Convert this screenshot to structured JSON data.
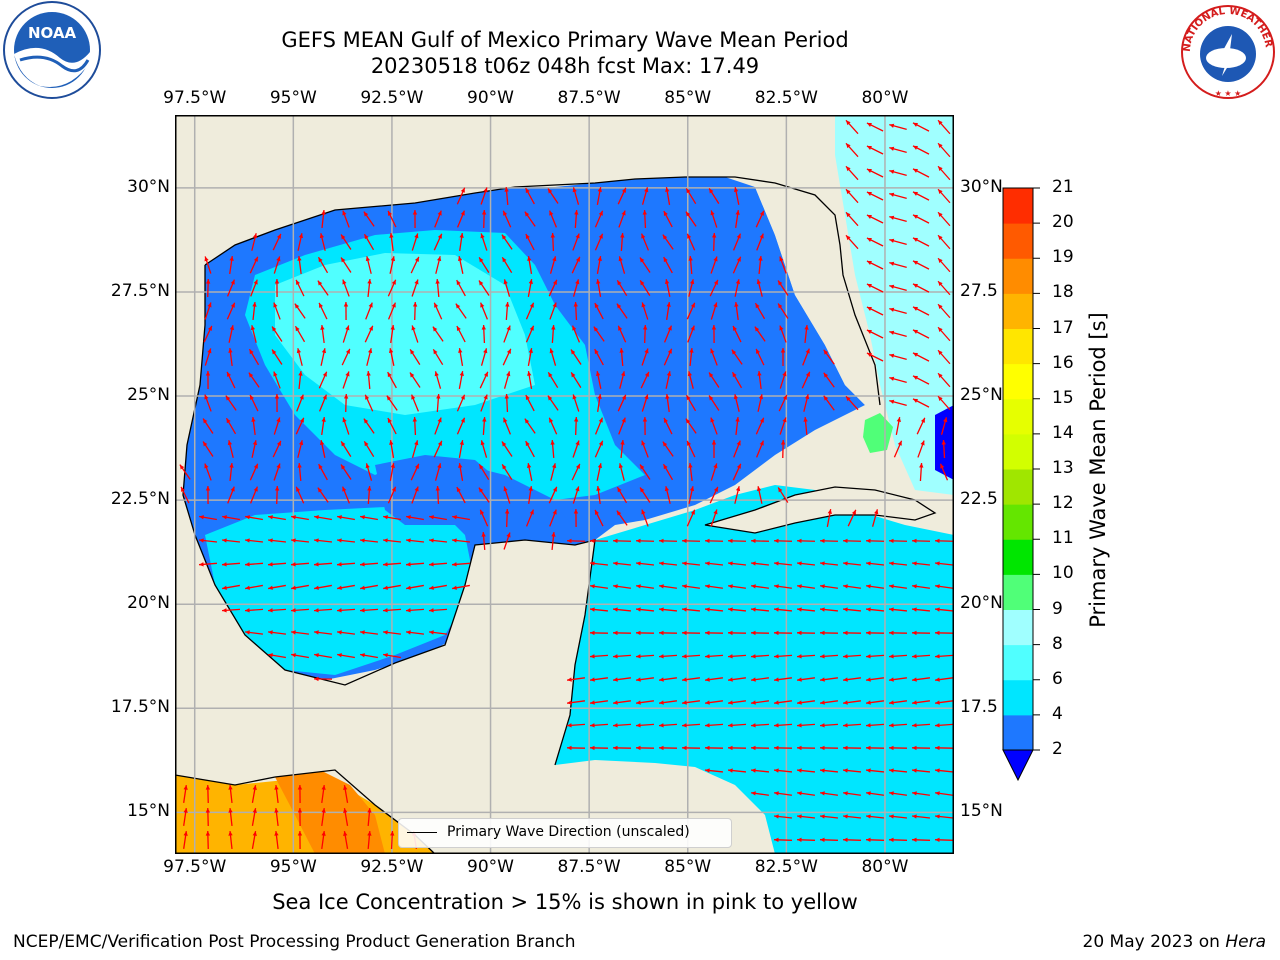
{
  "title": {
    "line1": "GEFS MEAN Gulf of Mexico Primary Wave Mean Period",
    "line2": "20230518 t06z 048h fcst   Max: 17.49"
  },
  "axes": {
    "lon_labels": [
      "97.5°W",
      "95°W",
      "92.5°W",
      "90°W",
      "87.5°W",
      "85°W",
      "82.5°W",
      "80°W"
    ],
    "lat_labels": [
      "30°N",
      "27.5°N",
      "25°N",
      "22.5°N",
      "20°N",
      "17.5°N",
      "15°N"
    ],
    "lat_labels_right": [
      "30°N",
      "27.5",
      "25°N",
      "22.5",
      "20°N",
      "17.5",
      "15°N"
    ]
  },
  "colorbar": {
    "label": "Primary Wave Mean Period [s]",
    "ticks": [
      "2",
      "4",
      "6",
      "8",
      "9",
      "10",
      "11",
      "12",
      "13",
      "14",
      "15",
      "16",
      "17",
      "18",
      "19",
      "20",
      "21"
    ],
    "colors": [
      "#1e78ff",
      "#00e6ff",
      "#50ffff",
      "#a0ffff",
      "#50ff78",
      "#00ff00",
      "#64e600",
      "#a0e600",
      "#d2ff00",
      "#e6ff00",
      "#ffff00",
      "#ffe600",
      "#ffb400",
      "#ff8c00",
      "#ff5a00",
      "#ff2d00",
      "#ff0000"
    ],
    "under_color": "#0000ff",
    "extend": "min"
  },
  "legend": {
    "label": "Primary Wave Direction (unscaled)"
  },
  "subtitle": "Sea Ice Concentration > 15% is shown in pink to yellow",
  "footer": {
    "left": "NCEP/EMC/Verification Post Processing Product Generation Branch",
    "right_date": "20 May 2023 on ",
    "right_host": "Hera"
  },
  "logos": {
    "left": "NOAA",
    "right": "NATIONAL WEATHER SERVICE"
  },
  "colors": {
    "land": "#efecdc",
    "grid": "#b0b0b0",
    "arrow": "#ff0000"
  },
  "map_data": {
    "lon_range": [
      -98.0,
      -78.25
    ],
    "lat_range": [
      14.0,
      31.75
    ],
    "max_period": 17.49
  }
}
